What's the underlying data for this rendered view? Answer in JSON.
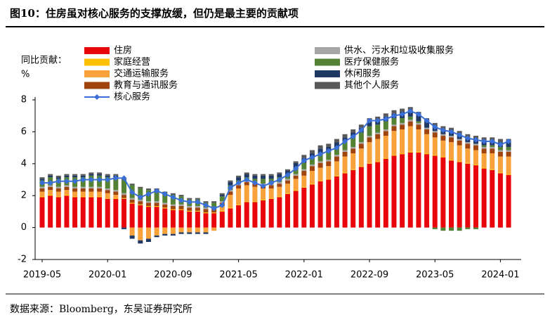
{
  "chart_data": {
    "type": "stacked_bar_line",
    "title": "图10：住房虽对核心服务的支撑放缓，但仍是最主要的贡献项",
    "y_label": "同比贡献：",
    "y_unit": "%",
    "source": "数据来源：Bloomberg，东吴证券研究所",
    "categories": [
      "2019-05",
      null,
      null,
      null,
      null,
      null,
      null,
      null,
      "2020-01",
      null,
      null,
      null,
      null,
      null,
      null,
      null,
      "2020-09",
      null,
      null,
      null,
      null,
      null,
      null,
      null,
      "2021-05",
      null,
      null,
      null,
      null,
      null,
      null,
      null,
      "2022-01",
      null,
      null,
      null,
      null,
      null,
      null,
      null,
      "2022-09",
      null,
      null,
      null,
      null,
      null,
      null,
      null,
      "2023-05",
      null,
      null,
      null,
      null,
      null,
      null,
      null,
      "2024-01",
      null
    ],
    "ylim": [
      -2,
      8
    ],
    "yticks": [
      -2,
      0,
      2,
      4,
      6,
      8
    ],
    "series": [
      {
        "name": "住房",
        "color": "#e8060c",
        "values": [
          1.9,
          2.0,
          1.9,
          2.0,
          1.9,
          1.9,
          1.9,
          1.9,
          1.8,
          1.8,
          1.8,
          1.5,
          1.4,
          1.3,
          1.3,
          1.2,
          1.1,
          1.1,
          1.0,
          1.0,
          0.9,
          0.9,
          1.0,
          1.2,
          1.4,
          1.6,
          1.6,
          1.7,
          1.8,
          1.9,
          2.1,
          2.3,
          2.5,
          2.7,
          2.9,
          3.0,
          3.2,
          3.4,
          3.6,
          3.8,
          4.0,
          4.1,
          4.3,
          4.5,
          4.6,
          4.7,
          4.7,
          4.6,
          4.5,
          4.4,
          4.2,
          4.1,
          4.0,
          3.9,
          3.7,
          3.6,
          3.4,
          3.3
        ]
      },
      {
        "name": "家庭经营",
        "color": "#ffc000",
        "values": [
          0.05,
          0.05,
          0.05,
          0.05,
          0.05,
          0.05,
          0.05,
          0.05,
          0.05,
          0.05,
          0.05,
          0.05,
          0.05,
          0.05,
          0.05,
          0.05,
          0.05,
          0.05,
          0.05,
          0.05,
          0.05,
          0.05,
          0.05,
          0.05,
          0.05,
          0.05,
          0.05,
          0.05,
          0.05,
          0.05,
          0.05,
          0.05,
          0.05,
          0.05,
          0.05,
          0.05,
          0.05,
          0.05,
          0.05,
          0.05,
          0.05,
          0.05,
          0.05,
          0.05,
          0.05,
          0.05,
          0.05,
          0.05,
          0.05,
          0.05,
          0.05,
          0.05,
          0.05,
          0.05,
          0.05,
          0.05,
          0.05,
          0.05
        ]
      },
      {
        "name": "交通运输服务",
        "color": "#f9a23b",
        "values": [
          0.3,
          0.3,
          0.3,
          0.3,
          0.3,
          0.3,
          0.3,
          0.3,
          0.3,
          0.2,
          0.0,
          -0.5,
          -0.8,
          -0.7,
          -0.5,
          -0.4,
          -0.4,
          -0.3,
          -0.3,
          -0.3,
          -0.3,
          -0.2,
          0.3,
          0.8,
          1.0,
          1.0,
          0.9,
          0.7,
          0.6,
          0.6,
          0.6,
          0.7,
          0.7,
          0.8,
          0.8,
          0.8,
          0.9,
          1.0,
          1.0,
          1.1,
          1.3,
          1.4,
          1.4,
          1.5,
          1.5,
          1.6,
          1.4,
          1.2,
          1.1,
          1.0,
          1.1,
          1.0,
          0.9,
          0.9,
          0.9,
          1.0,
          1.0,
          1.1
        ]
      },
      {
        "name": "教育与通讯服务",
        "color": "#a0440e",
        "values": [
          0.2,
          0.2,
          0.2,
          0.2,
          0.2,
          0.2,
          0.2,
          0.2,
          0.2,
          0.2,
          0.2,
          0.2,
          0.2,
          0.2,
          0.2,
          0.2,
          0.2,
          0.2,
          0.2,
          0.2,
          0.2,
          0.2,
          0.2,
          0.2,
          0.2,
          0.2,
          0.2,
          0.2,
          0.2,
          0.2,
          0.2,
          0.2,
          0.3,
          0.3,
          0.3,
          0.3,
          0.3,
          0.3,
          0.3,
          0.3,
          0.3,
          0.3,
          0.3,
          0.3,
          0.3,
          0.3,
          0.3,
          0.3,
          0.3,
          0.3,
          0.3,
          0.3,
          0.3,
          0.3,
          0.3,
          0.3,
          0.3,
          0.3
        ]
      },
      {
        "name": "供水、污水和垃圾收集服务",
        "color": "#a6a6a6",
        "values": [
          0.1,
          0.1,
          0.1,
          0.1,
          0.1,
          0.1,
          0.1,
          0.1,
          0.1,
          0.1,
          0.1,
          0.1,
          0.1,
          0.1,
          0.1,
          0.1,
          0.1,
          0.1,
          0.1,
          0.1,
          0.1,
          0.1,
          0.1,
          0.1,
          0.1,
          0.1,
          0.1,
          0.1,
          0.1,
          0.1,
          0.1,
          0.1,
          0.1,
          0.1,
          0.1,
          0.1,
          0.1,
          0.1,
          0.1,
          0.1,
          0.1,
          0.1,
          0.1,
          0.1,
          0.1,
          0.1,
          0.1,
          0.1,
          0.1,
          0.1,
          0.1,
          0.1,
          0.1,
          0.1,
          0.1,
          0.1,
          0.1,
          0.1
        ]
      },
      {
        "name": "医疗保健服务",
        "color": "#548235",
        "values": [
          0.4,
          0.5,
          0.5,
          0.5,
          0.6,
          0.6,
          0.7,
          0.7,
          0.7,
          0.8,
          0.8,
          0.8,
          0.7,
          0.7,
          0.7,
          0.6,
          0.6,
          0.5,
          0.4,
          0.4,
          0.3,
          0.3,
          0.3,
          0.3,
          0.2,
          0.2,
          0.2,
          0.3,
          0.3,
          0.3,
          0.3,
          0.4,
          0.4,
          0.4,
          0.5,
          0.5,
          0.5,
          0.5,
          0.6,
          0.6,
          0.6,
          0.5,
          0.5,
          0.4,
          0.3,
          0.2,
          0.1,
          0.0,
          -0.1,
          -0.2,
          -0.2,
          -0.2,
          -0.1,
          -0.1,
          0.1,
          0.1,
          0.2,
          0.2
        ]
      },
      {
        "name": "休闲服务",
        "color": "#203864",
        "values": [
          0.1,
          0.1,
          0.1,
          0.1,
          0.1,
          0.1,
          0.1,
          0.1,
          0.1,
          0.1,
          -0.1,
          -0.2,
          -0.2,
          -0.2,
          -0.1,
          -0.1,
          -0.1,
          -0.1,
          -0.1,
          -0.1,
          -0.1,
          0,
          0.1,
          0.2,
          0.2,
          0.2,
          0.2,
          0.2,
          0.2,
          0.2,
          0.2,
          0.3,
          0.3,
          0.3,
          0.3,
          0.3,
          0.3,
          0.3,
          0.3,
          0.3,
          0.3,
          0.3,
          0.3,
          0.3,
          0.4,
          0.4,
          0.4,
          0.4,
          0.3,
          0.3,
          0.3,
          0.3,
          0.3,
          0.3,
          0.3,
          0.3,
          0.3,
          0.3
        ]
      },
      {
        "name": "其他个人服务",
        "color": "#595959",
        "values": [
          0.1,
          0.1,
          0.1,
          0.1,
          0.1,
          0.1,
          0.1,
          0.1,
          0.1,
          0.1,
          0.1,
          0.1,
          0.1,
          0.1,
          0.1,
          0.1,
          0.1,
          0.1,
          0.1,
          0.1,
          0.1,
          0.1,
          0.1,
          0.1,
          0.1,
          0.1,
          0.1,
          0.1,
          0.1,
          0.1,
          0.1,
          0.1,
          0.2,
          0.2,
          0.2,
          0.2,
          0.2,
          0.2,
          0.2,
          0.2,
          0.2,
          0.2,
          0.2,
          0.2,
          0.2,
          0.2,
          0.2,
          0.2,
          0.2,
          0.2,
          0.2,
          0.2,
          0.2,
          0.2,
          0.2,
          0.2,
          0.2,
          0.2
        ]
      },
      {
        "name": "核心服务",
        "color": "#3a6fd8",
        "type": "line",
        "values": [
          2.8,
          2.8,
          2.9,
          2.9,
          2.9,
          3.0,
          3.0,
          3.0,
          3.0,
          3.1,
          3.1,
          2.2,
          1.9,
          2.1,
          2.3,
          2.1,
          1.9,
          1.7,
          1.6,
          1.6,
          1.4,
          1.2,
          1.4,
          2.5,
          2.8,
          3.0,
          2.8,
          2.6,
          2.8,
          3.0,
          3.3,
          3.7,
          4.2,
          4.4,
          4.6,
          4.8,
          5.0,
          5.4,
          5.7,
          6.1,
          6.7,
          6.7,
          6.8,
          7.0,
          7.1,
          7.3,
          7.1,
          6.7,
          6.3,
          6.1,
          6.0,
          5.8,
          5.6,
          5.5,
          5.4,
          5.4,
          5.2,
          5.4
        ]
      }
    ]
  }
}
